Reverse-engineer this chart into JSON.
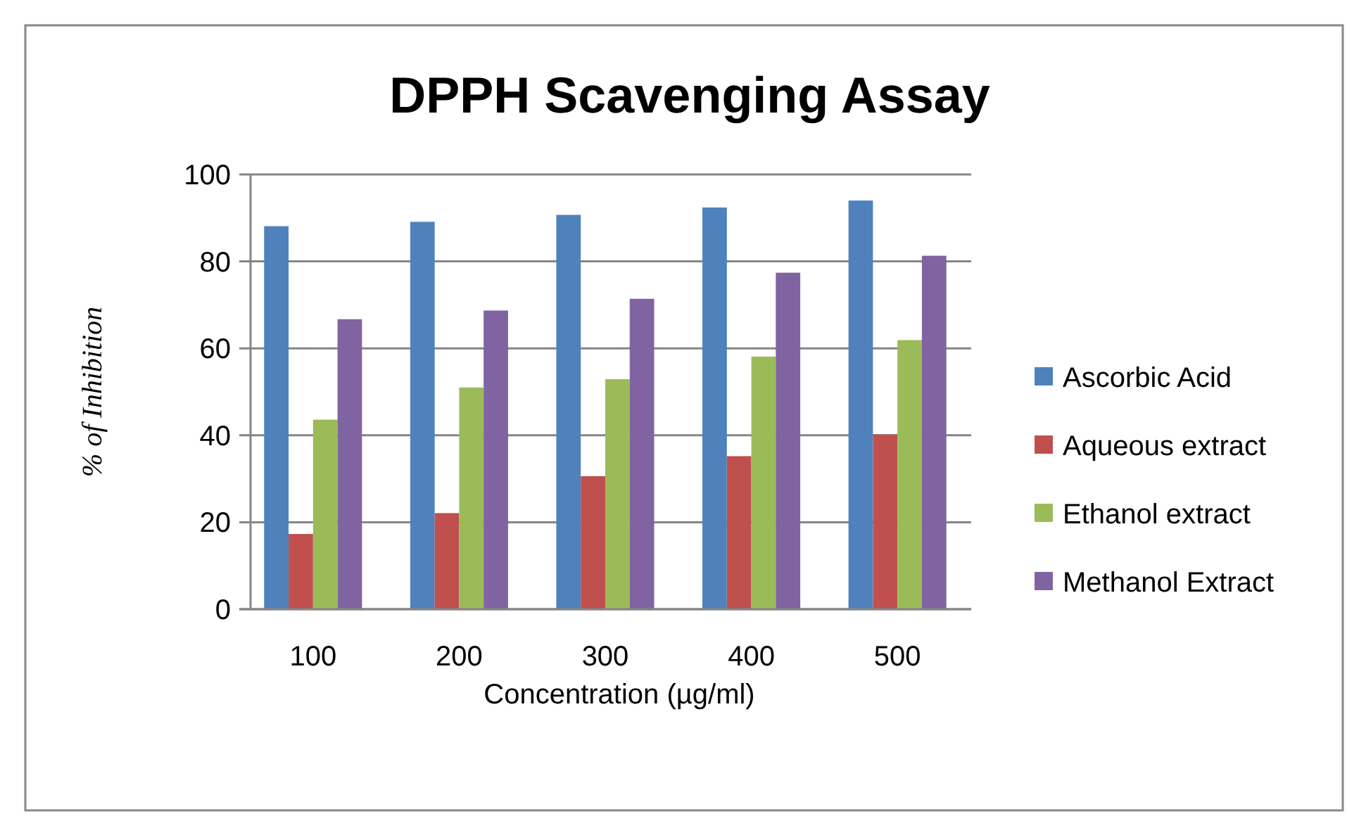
{
  "chart_data": {
    "type": "bar",
    "title": "DPPH Scavenging Assay",
    "xlabel": "Concentration (µg/ml)",
    "ylabel": "% of Inhibition",
    "categories": [
      "100",
      "200",
      "300",
      "400",
      "500"
    ],
    "series": [
      {
        "name": "Ascorbic Acid",
        "color": "#4f81bd",
        "values": [
          88.1,
          89.1,
          90.7,
          92.4,
          94.0
        ]
      },
      {
        "name": "Aqueous extract",
        "color": "#c0504d",
        "values": [
          17.3,
          22.1,
          30.6,
          35.2,
          40.2
        ]
      },
      {
        "name": "Ethanol extract",
        "color": "#9bbb59",
        "values": [
          43.6,
          51.0,
          52.9,
          58.1,
          61.9
        ]
      },
      {
        "name": "Methanol Extract",
        "color": "#8064a2",
        "values": [
          66.7,
          68.7,
          71.4,
          77.4,
          81.3
        ]
      }
    ],
    "ylim": [
      0,
      100
    ],
    "yticks": [
      0,
      20,
      40,
      60,
      80,
      100
    ],
    "grid": "y",
    "legend": "right"
  }
}
